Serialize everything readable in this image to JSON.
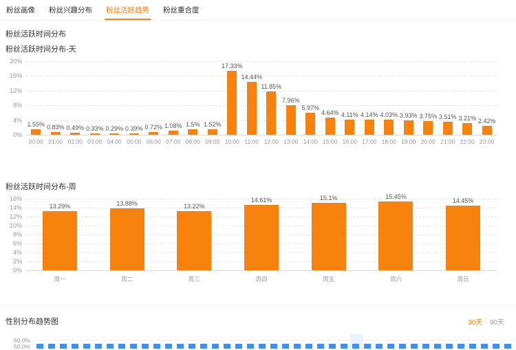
{
  "colors": {
    "accent_orange": "#f7820d",
    "line_blue": "#3d91e8"
  },
  "tabs": [
    {
      "label": "粉丝画像",
      "active": false
    },
    {
      "label": "粉丝兴趣分布",
      "active": false
    },
    {
      "label": "粉丝活跃趋势",
      "active": true
    },
    {
      "label": "粉丝重合度",
      "active": false
    }
  ],
  "section_title": "粉丝活跃时间分布",
  "chart_data": [
    {
      "type": "bar",
      "title": "粉丝活跃时间分布-天",
      "categories": [
        "00:00",
        "01:00",
        "02:00",
        "03:00",
        "04:00",
        "05:00",
        "06:00",
        "07:00",
        "08:00",
        "09:00",
        "10:00",
        "11:00",
        "12:00",
        "13:00",
        "14:00",
        "15:00",
        "16:00",
        "17:00",
        "18:00",
        "19:00",
        "20:00",
        "21:00",
        "22:00",
        "23:00"
      ],
      "values": [
        1.55,
        0.83,
        0.49,
        0.33,
        0.29,
        0.39,
        0.72,
        1.08,
        1.5,
        1.52,
        17.33,
        14.44,
        11.85,
        7.96,
        5.97,
        4.64,
        4.11,
        4.14,
        4.03,
        3.93,
        3.75,
        3.51,
        3.21,
        2.42
      ],
      "labels": [
        "1.55%",
        "0.83%",
        "0.49%",
        "0.33%",
        "0.29%",
        "0.39%",
        "0.72%",
        "1.08%",
        "1.5%",
        "1.52%",
        "17.33%",
        "14.44%",
        "11.85%",
        "7.96%",
        "5.97%",
        "4.64%",
        "4.11%",
        "4.14%",
        "4.03%",
        "3.93%",
        "3.75%",
        "3.51%",
        "3.21%",
        "2.42%"
      ],
      "ylim": [
        0,
        20
      ],
      "yticks": [
        "20%",
        "16%",
        "12%",
        "8%",
        "4%",
        "0%"
      ],
      "grid": true,
      "bar_color": "#f7820d"
    },
    {
      "type": "bar",
      "title": "粉丝活跃时间分布-周",
      "categories": [
        "周一",
        "周二",
        "周三",
        "周四",
        "周五",
        "周六",
        "周日"
      ],
      "values": [
        13.29,
        13.88,
        13.22,
        14.61,
        15.1,
        15.45,
        14.45
      ],
      "labels": [
        "13.29%",
        "13.88%",
        "13.22%",
        "14.61%",
        "15.1%",
        "15.45%",
        "14.45%"
      ],
      "ylim": [
        0,
        16
      ],
      "yticks": [
        "16%",
        "14%",
        "12%",
        "10%",
        "8%",
        "6%",
        "4%",
        "2%",
        "0%"
      ],
      "grid": true,
      "bar_color": "#f7820d"
    },
    {
      "type": "line",
      "title": "性别分布趋势图",
      "yticks": [
        "60.0%",
        "50.0%"
      ],
      "series": [
        {
          "name": "gender-trend-line",
          "style": "dashed",
          "color": "#3d91e8",
          "visible_value_approx_pct": 52
        }
      ],
      "legend_position": "none",
      "note_visible_range": [
        "50.0%",
        "60.0%"
      ]
    }
  ],
  "gender_section": {
    "range_options": [
      {
        "label": "30天",
        "active": true
      },
      {
        "label": "90天",
        "active": false
      }
    ],
    "separator": "|"
  }
}
